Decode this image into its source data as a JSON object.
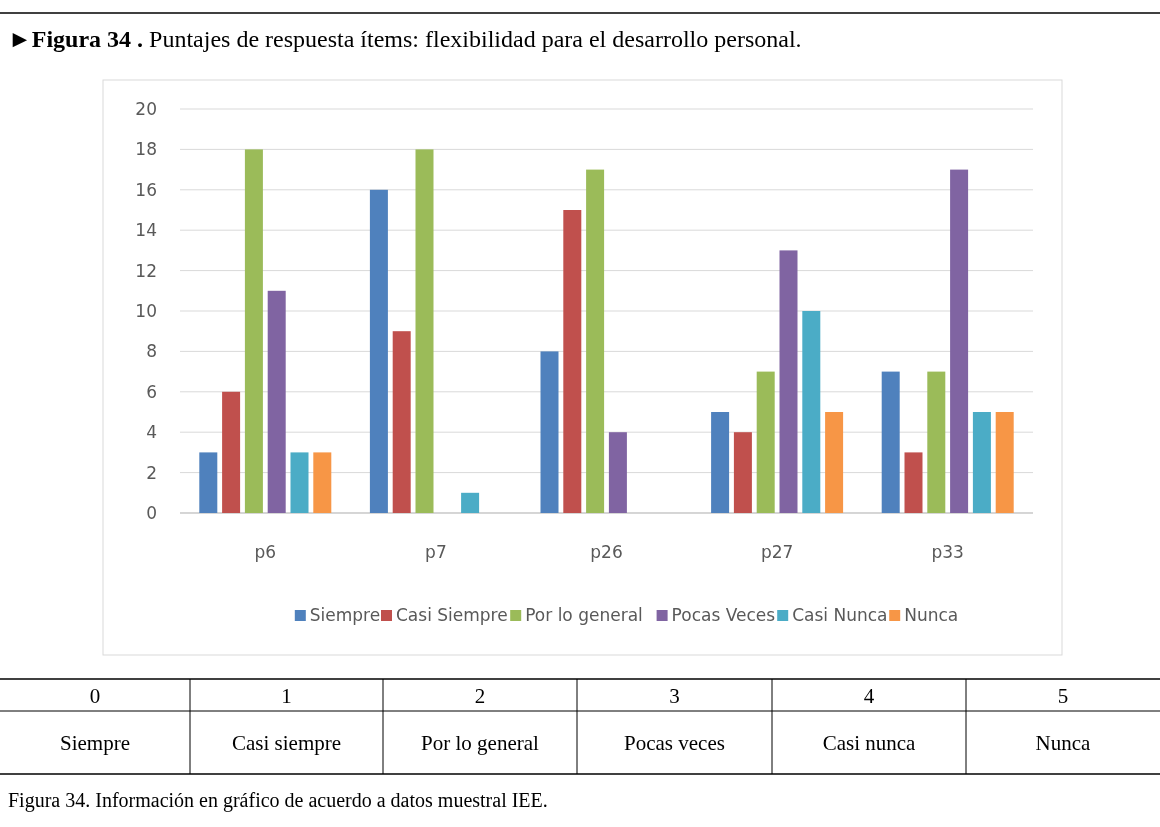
{
  "chart_data": {
    "type": "bar",
    "title": "►Figura 34 . Puntajes de respuesta ítems: flexibilidad para el desarrollo personal.",
    "categories": [
      "p6",
      "p7",
      "p26",
      "p27",
      "p33"
    ],
    "series": [
      {
        "name": "Siempre",
        "color": "#4f81bd",
        "values": [
          3,
          16,
          8,
          5,
          7
        ]
      },
      {
        "name": "Casi Siempre",
        "color": "#c0504d",
        "values": [
          6,
          9,
          15,
          4,
          3
        ]
      },
      {
        "name": "Por lo general",
        "color": "#9bbb59",
        "values": [
          18,
          18,
          17,
          7,
          7
        ]
      },
      {
        "name": "Pocas Veces",
        "color": "#8064a2",
        "values": [
          11,
          0,
          4,
          13,
          17
        ]
      },
      {
        "name": "Casi Nunca",
        "color": "#4bacc6",
        "values": [
          3,
          1,
          0,
          10,
          5
        ]
      },
      {
        "name": "Nunca",
        "color": "#f79646",
        "values": [
          3,
          0,
          0,
          5,
          5
        ]
      }
    ],
    "ylim": [
      0,
      20
    ],
    "yticks": [
      0,
      2,
      4,
      6,
      8,
      10,
      12,
      14,
      16,
      18,
      20
    ],
    "grid": "y",
    "legend": "bottom",
    "annotations": [
      "0",
      "1",
      "2",
      "3",
      "4",
      "5",
      "Siempre",
      "Casi siempre",
      "Por lo general",
      "Pocas veces",
      "Casi nunca",
      "Nunca",
      "Figura 34. Información en gráfico de acuerdo a datos muestral IEE."
    ]
  }
}
